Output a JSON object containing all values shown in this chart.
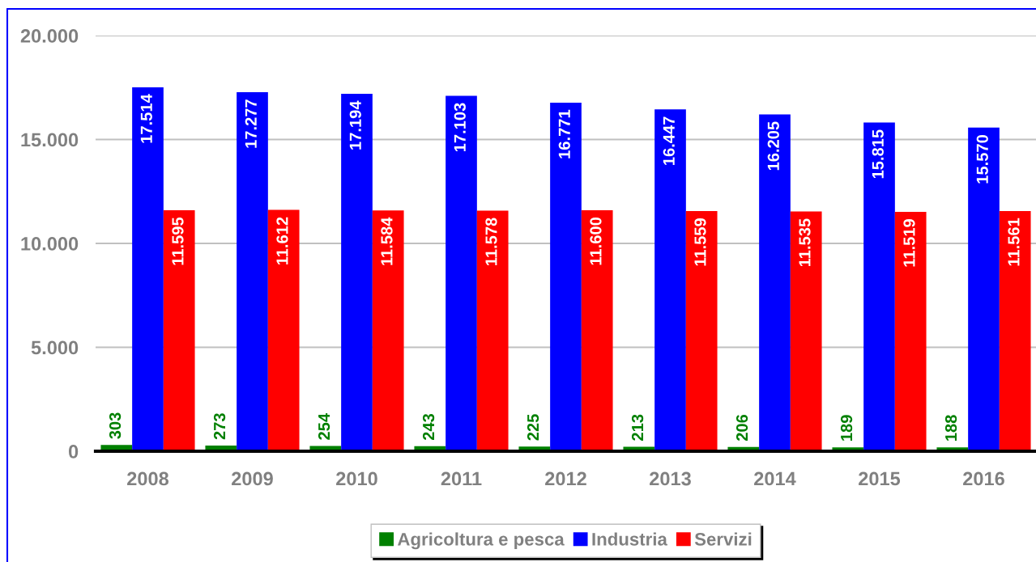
{
  "chart_data": {
    "type": "bar",
    "categories": [
      "2008",
      "2009",
      "2010",
      "2011",
      "2012",
      "2013",
      "2014",
      "2015",
      "2016"
    ],
    "series": [
      {
        "name": "Agricoltura e pesca",
        "color": "#008000",
        "values": [
          303,
          273,
          254,
          243,
          225,
          213,
          206,
          189,
          188
        ],
        "value_labels": [
          "303",
          "273",
          "254",
          "243",
          "225",
          "213",
          "206",
          "189",
          "188"
        ]
      },
      {
        "name": "Industria",
        "color": "#0000ff",
        "values": [
          17514,
          17277,
          17194,
          17103,
          16771,
          16447,
          16205,
          15815,
          15570
        ],
        "value_labels": [
          "17.514",
          "17.277",
          "17.194",
          "17.103",
          "16.771",
          "16.447",
          "16.205",
          "15.815",
          "15.570"
        ]
      },
      {
        "name": "Servizi",
        "color": "#ff0000",
        "values": [
          11595,
          11612,
          11584,
          11578,
          11600,
          11559,
          11535,
          11519,
          11561
        ],
        "value_labels": [
          "11.595",
          "11.612",
          "11.584",
          "11.578",
          "11.600",
          "11.559",
          "11.535",
          "11.519",
          "11.561"
        ]
      }
    ],
    "ylim": [
      0,
      20000
    ],
    "yticks": [
      0,
      {
        "value": 5000,
        "label": "5.000"
      },
      {
        "value": 10000,
        "label": "10.000"
      },
      {
        "value": 15000,
        "label": "15.000"
      },
      {
        "value": 20000,
        "label": "20.000"
      }
    ],
    "grid": "y",
    "legend": "bottom"
  }
}
